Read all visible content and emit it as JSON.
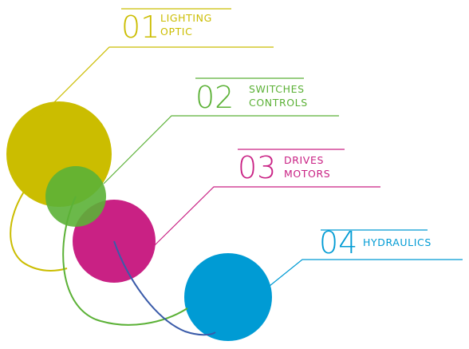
{
  "colors": {
    "lighting": "#CBBD00",
    "switches": "#5BB136",
    "drives": "#C92184",
    "hydraulics": "#009BD4"
  },
  "items": [
    {
      "number": "01",
      "line1": "LIGHTING",
      "line2": "OPTIC"
    },
    {
      "number": "02",
      "line1": "SWITCHES",
      "line2": "CONTROLS"
    },
    {
      "number": "03",
      "line1": "DRIVES",
      "line2": "MOTORS"
    },
    {
      "number": "04",
      "line1": "HYDRAULICS",
      "line2": ""
    }
  ]
}
